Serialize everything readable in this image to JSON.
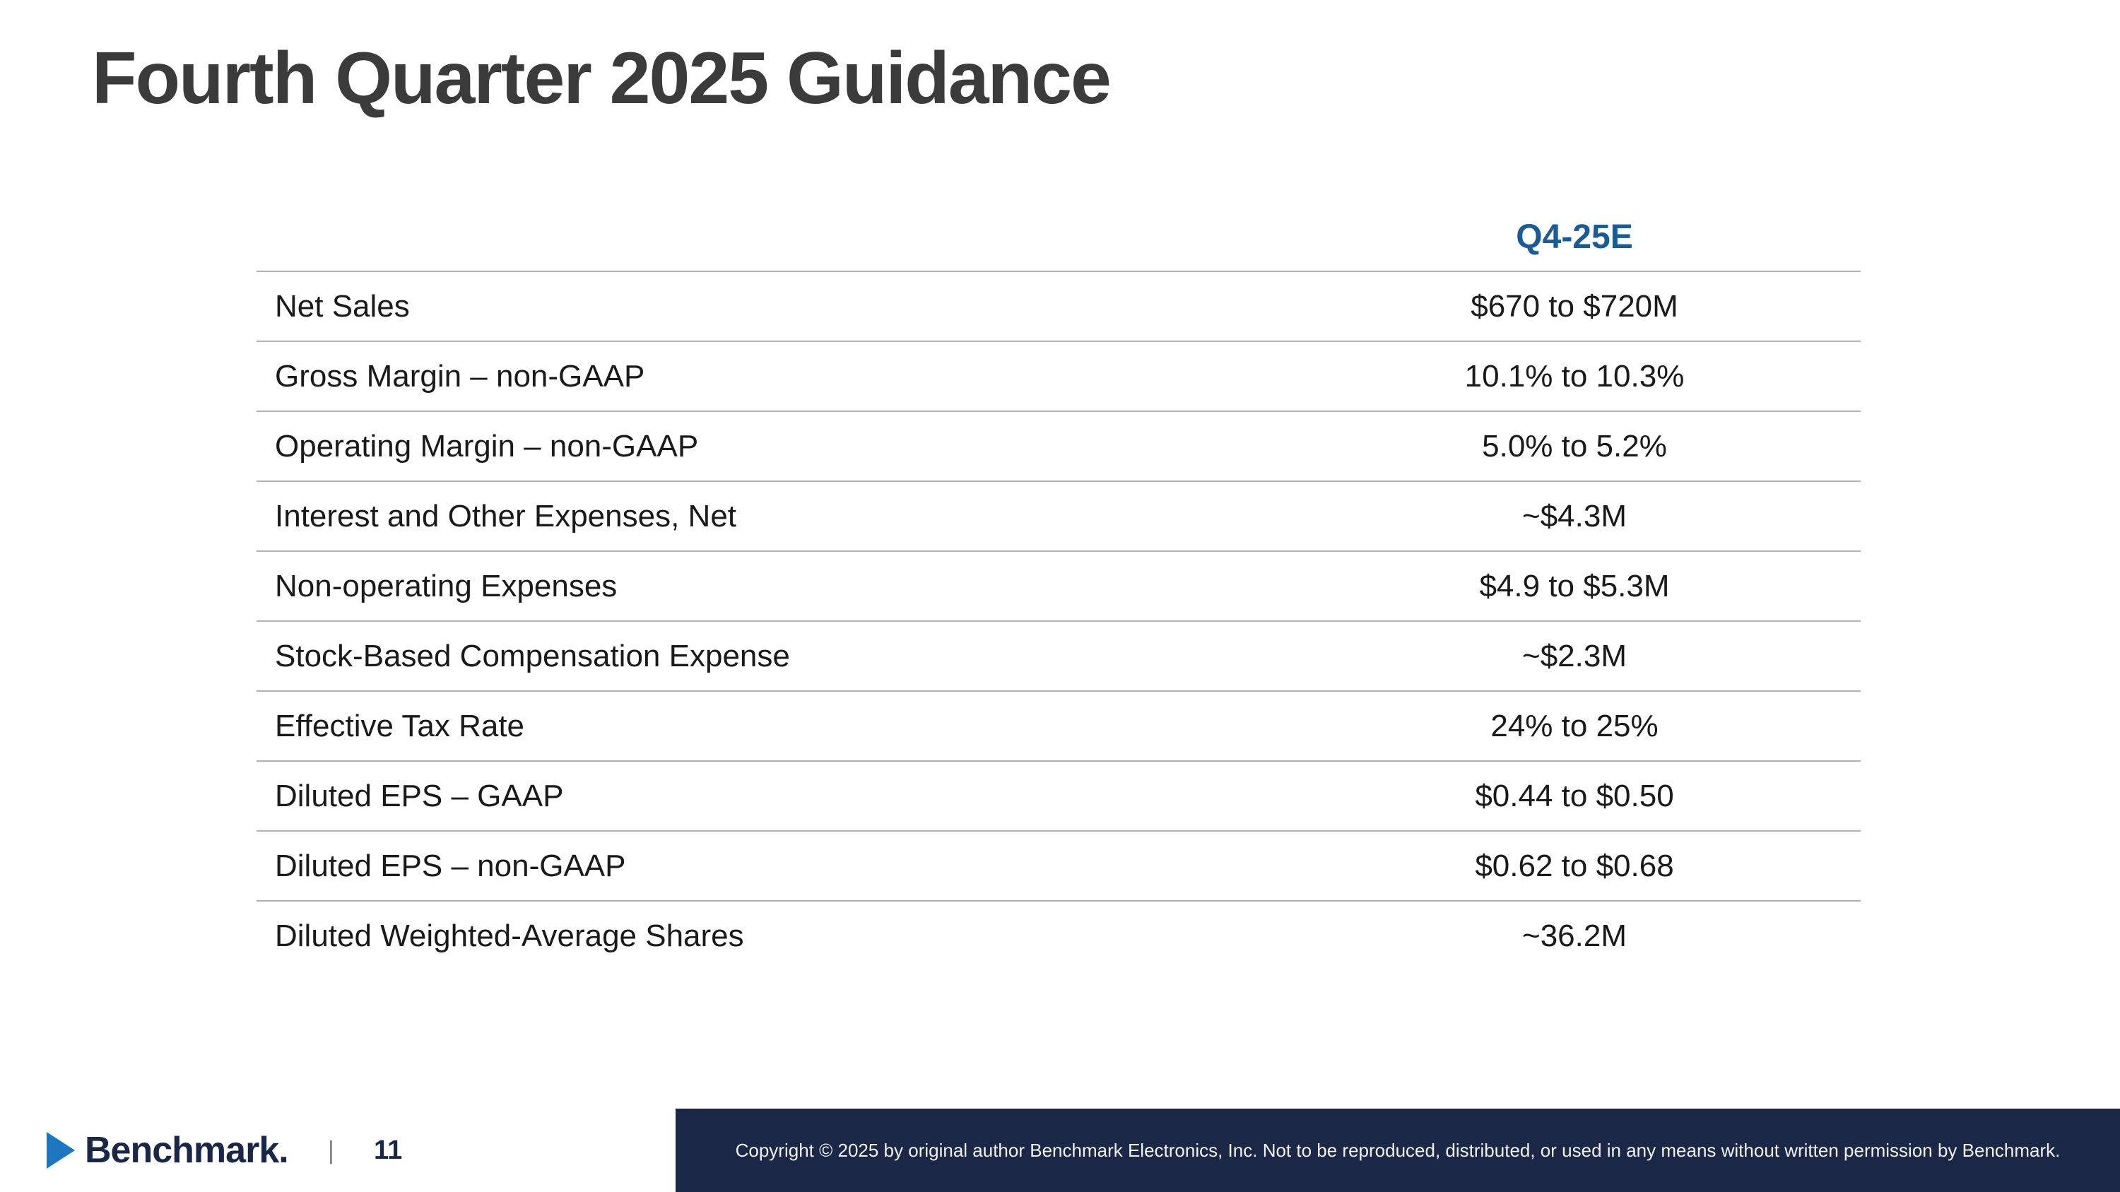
{
  "slide": {
    "title": "Fourth Quarter 2025 Guidance",
    "table": {
      "column_header": "Q4-25E",
      "rows": [
        {
          "label": "Net Sales",
          "value": "$670 to $720M"
        },
        {
          "label": "Gross Margin – non-GAAP",
          "value": "10.1% to 10.3%"
        },
        {
          "label": "Operating Margin – non-GAAP",
          "value": "5.0% to 5.2%"
        },
        {
          "label": "Interest and Other Expenses, Net",
          "value": "~$4.3M"
        },
        {
          "label": "Non-operating Expenses",
          "value": "$4.9 to $5.3M"
        },
        {
          "label": "Stock-Based Compensation Expense",
          "value": "~$2.3M"
        },
        {
          "label": "Effective Tax Rate",
          "value": "24% to 25%"
        },
        {
          "label": "Diluted EPS – GAAP",
          "value": "$0.44 to $0.50"
        },
        {
          "label": "Diluted EPS – non-GAAP",
          "value": "$0.62 to $0.68"
        },
        {
          "label": "Diluted Weighted-Average Shares",
          "value": "~36.2M"
        }
      ]
    },
    "footer": {
      "logo_text": "Benchmark.",
      "divider": "|",
      "page_number": "11",
      "copyright": "Copyright © 2025 by original author Benchmark Electronics, Inc. Not to be reproduced, distributed, or used in any means without written permission by Benchmark."
    },
    "colors": {
      "accent_blue": "#1A5A96",
      "footer_navy": "#1B2747",
      "title_gray": "#3B3B3B",
      "logo_arrow_blue": "#1E77BE"
    }
  }
}
